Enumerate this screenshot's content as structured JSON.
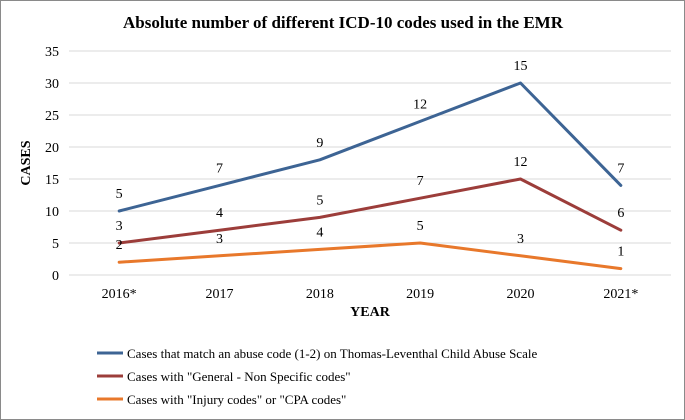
{
  "chart_data": {
    "type": "line",
    "title": "Absolute number of different ICD-10 codes used in the EMR",
    "xlabel": "YEAR",
    "ylabel": "CASES",
    "categories": [
      "2016*",
      "2017",
      "2018",
      "2019",
      "2020",
      "2021*"
    ],
    "ylim": [
      0,
      35
    ],
    "yticks": [
      0,
      5,
      10,
      15,
      20,
      25,
      30,
      35
    ],
    "grid": true,
    "legend_position": "bottom",
    "series": [
      {
        "name": "Cases that match an abuse code (1-2) on Thomas-Leventhal Child Abuse Scale",
        "color": "#3d6494",
        "values": [
          10,
          14,
          18,
          24,
          30,
          14
        ],
        "labels": [
          "5",
          "7",
          "9",
          "12",
          "15",
          "7"
        ]
      },
      {
        "name": "Cases with \"General - Non Specific codes\"",
        "color": "#9c3d3a",
        "values": [
          5,
          7,
          9,
          12,
          15,
          7
        ],
        "labels": [
          "3",
          "4",
          "5",
          "7",
          "12",
          "6"
        ]
      },
      {
        "name": "Cases with \"Injury codes\" or \"CPA codes\"",
        "color": "#e8782b",
        "values": [
          2,
          3,
          4,
          5,
          3,
          1
        ],
        "labels": [
          "2",
          "3",
          "4",
          "5",
          "3",
          "1"
        ]
      }
    ]
  }
}
